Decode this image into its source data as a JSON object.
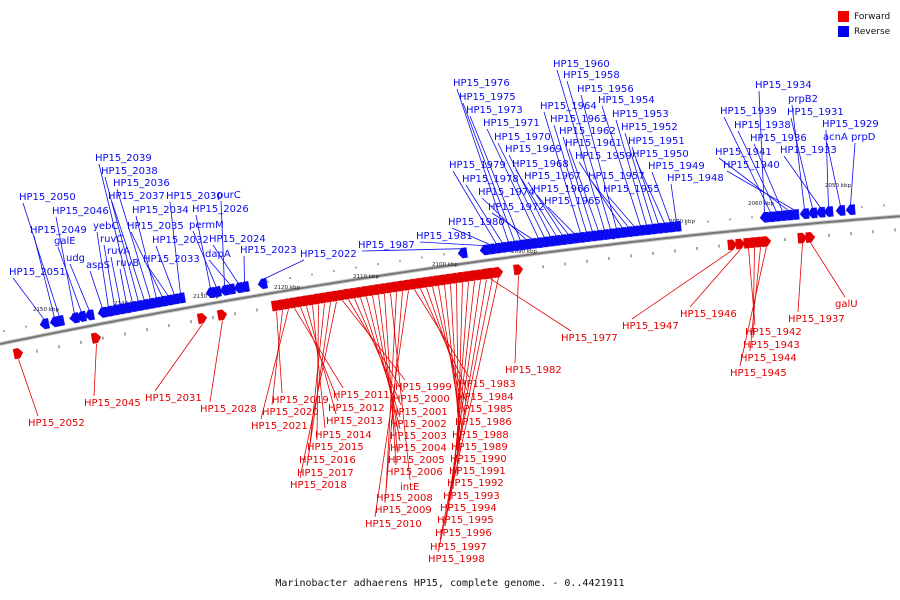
{
  "title": "Marinobacter adhaerens HP15, complete genome. - 0..4421911",
  "legend": [
    {
      "label": "Forward",
      "color": "#ee0000"
    },
    {
      "label": "Reverse",
      "color": "#0000ee"
    }
  ],
  "colors": {
    "forward": "#e30000",
    "reverse": "#0a0af0",
    "axis": "#777777"
  },
  "scale_labels": [
    "2150 kbp",
    "2140 kbp",
    "2130 kbp",
    "2120 kbp",
    "2110 kbp",
    "2100 kbp",
    "2090 kbp",
    "2080 kbp",
    "2070 kbp",
    "2060 kbp",
    "2050 kbp"
  ],
  "reverse_genes": [
    "HP15_2051",
    "HP15_2049",
    "HP15_2050",
    "HP15_2046",
    "galE",
    "udg",
    "aspS",
    "yebC",
    "ruvC",
    "ruvA",
    "ruvB",
    "HP15_2039",
    "HP15_2038",
    "HP15_2037",
    "HP15_2036",
    "HP15_2034",
    "HP15_2035",
    "HP15_2033",
    "HP15_2032",
    "HP15_2030",
    "HP15_2026",
    "permM",
    "purC",
    "dapA",
    "HP15_2024",
    "HP15_2023",
    "HP15_2022",
    "HP15_1987",
    "HP15_1981",
    "HP15_1980",
    "HP15_1979",
    "HP15_1978",
    "HP15_1976",
    "HP15_1975",
    "HP15_1973",
    "HP15_1974",
    "HP15_1972",
    "HP15_1971",
    "HP15_1970",
    "HP15_1969",
    "HP15_1968",
    "HP15_1967",
    "HP15_1966",
    "HP15_1965",
    "HP15_1964",
    "HP15_1963",
    "HP15_1962",
    "HP15_1961",
    "HP15_1960",
    "HP15_1958",
    "HP15_1956",
    "HP15_1959",
    "HP15_1957",
    "HP15_1955",
    "HP15_1954",
    "HP15_1953",
    "HP15_1952",
    "HP15_1951",
    "HP15_1950",
    "HP15_1949",
    "HP15_1948",
    "HP15_1934",
    "HP15_1939",
    "HP15_1938",
    "HP15_1936",
    "HP15_1941",
    "HP15_1940",
    "prpB2",
    "HP15_1931",
    "HP15_1933",
    "HP15_1929",
    "acnA",
    "prpD"
  ],
  "forward_genes": [
    "HP15_2052",
    "HP15_2045",
    "HP15_2031",
    "HP15_2028",
    "HP15_2019",
    "HP15_2020",
    "HP15_2021",
    "HP15_2011",
    "HP15_2012",
    "HP15_2013",
    "HP15_2014",
    "HP15_2015",
    "HP15_2016",
    "HP15_2017",
    "HP15_2018",
    "HP15_1999",
    "HP15_2000",
    "HP15_2001",
    "HP15_2002",
    "HP15_2003",
    "HP15_2004",
    "HP15_2005",
    "HP15_2006",
    "intE",
    "HP15_2008",
    "HP15_2009",
    "HP15_2010",
    "HP15_1983",
    "HP15_1984",
    "HP15_1985",
    "HP15_1986",
    "HP15_1988",
    "HP15_1989",
    "HP15_1990",
    "HP15_1991",
    "HP15_1992",
    "HP15_1993",
    "HP15_1994",
    "HP15_1995",
    "HP15_1996",
    "HP15_1997",
    "HP15_1998",
    "HP15_1982",
    "HP15_1977",
    "HP15_1947",
    "HP15_1946",
    "HP15_1942",
    "HP15_1943",
    "HP15_1944",
    "HP15_1945",
    "HP15_1937",
    "galU"
  ]
}
